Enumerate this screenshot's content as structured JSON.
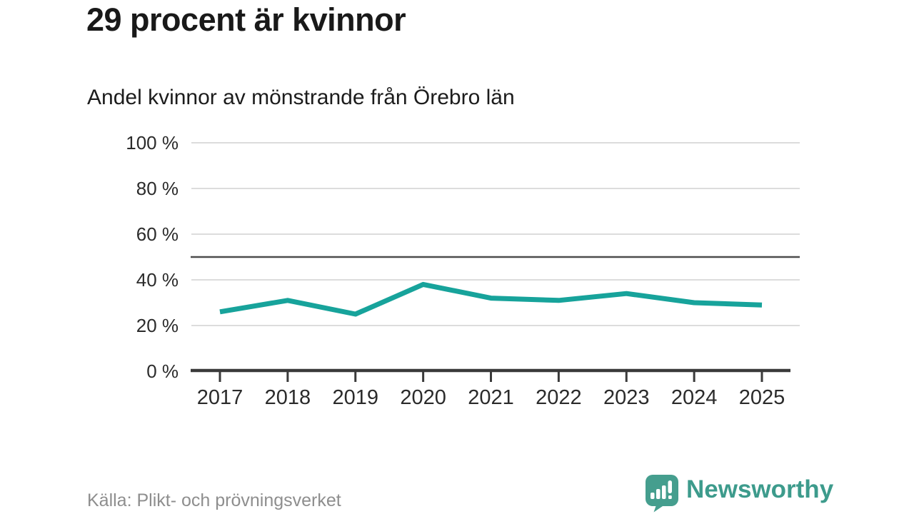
{
  "header": {
    "title": "29 procent är kvinnor",
    "subtitle": "Andel kvinnor av mönstrande från Örebro län"
  },
  "footer": {
    "source": "Källa: Plikt- och prövningsverket",
    "brand": "Newsworthy"
  },
  "colors": {
    "line": "#17a39b",
    "grid": "#dcdcdc",
    "reference": "#4d4d4d",
    "axis": "#3a3a3a",
    "axis_label": "#2b2b2b",
    "title": "#191919",
    "source": "#8e8e8e",
    "brand": "#3d9b8c",
    "logo_fill": "#459e8e"
  },
  "chart_data": {
    "type": "line",
    "title": "29 procent är kvinnor",
    "subtitle": "Andel kvinnor av mönstrande från Örebro län",
    "categories": [
      "2017",
      "2018",
      "2019",
      "2020",
      "2021",
      "2022",
      "2023",
      "2024",
      "2025"
    ],
    "values": [
      26,
      31,
      25,
      38,
      32,
      31,
      34,
      30,
      29
    ],
    "unit": "%",
    "xlabel": "",
    "ylabel": "",
    "ylim": [
      0,
      100
    ],
    "yticks": [
      0,
      20,
      40,
      60,
      80,
      100
    ],
    "ytick_suffix": " %",
    "reference_line": 50,
    "grid": true,
    "legend": "none",
    "source": "Källa: Plikt- och prövningsverket"
  }
}
